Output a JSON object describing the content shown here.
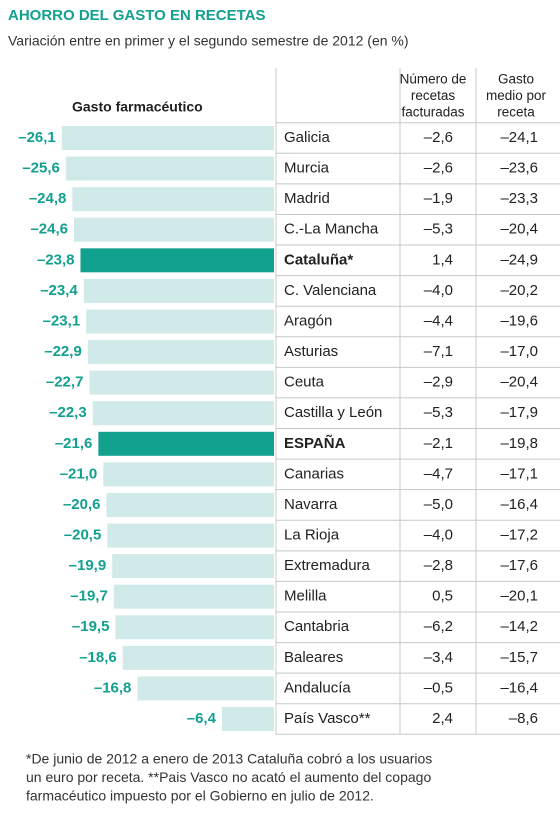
{
  "chart_data": {
    "type": "bar",
    "orientation": "horizontal",
    "title": "AHORRO DEL GASTO EN RECETAS",
    "subtitle": "Variación entre en primer y el segundo semestre de 2012 (en %)",
    "axis_label": "Gasto farmacéutico",
    "categories": [
      "Galicia",
      "Murcia",
      "Madrid",
      "C.-La Mancha",
      "Cataluña*",
      "C. Valenciana",
      "Aragón",
      "Asturias",
      "Ceuta",
      "Castilla y León",
      "ESPAÑA",
      "Canarias",
      "Navarra",
      "La Rioja",
      "Extremadura",
      "Melilla",
      "Cantabria",
      "Baleares",
      "Andalucía",
      "País Vasco**"
    ],
    "values": [
      -26.1,
      -25.6,
      -24.8,
      -24.6,
      -23.8,
      -23.4,
      -23.1,
      -22.9,
      -22.7,
      -22.3,
      -21.6,
      -21.0,
      -20.6,
      -20.5,
      -19.9,
      -19.7,
      -19.5,
      -18.6,
      -16.8,
      -6.4
    ],
    "value_labels": [
      "–26,1",
      "–25,6",
      "–24,8",
      "–24,6",
      "–23,8",
      "–23,4",
      "–23,1",
      "–22,9",
      "–22,7",
      "–22,3",
      "–21,6",
      "–21,0",
      "–20,6",
      "–20,5",
      "–19,9",
      "–19,7",
      "–19,5",
      "–18,6",
      "–16,8",
      "–6,4"
    ],
    "color": "#cfeae9",
    "colors": [
      "#cfeae9",
      "#cfeae9",
      "#cfeae9",
      "#cfeae9",
      "#12a08f",
      "#cfeae9",
      "#cfeae9",
      "#cfeae9",
      "#cfeae9",
      "#cfeae9",
      "#12a08f",
      "#cfeae9",
      "#cfeae9",
      "#cfeae9",
      "#cfeae9",
      "#cfeae9",
      "#cfeae9",
      "#cfeae9",
      "#cfeae9",
      "#cfeae9"
    ],
    "xlim": [
      -33.7,
      0
    ]
  },
  "table": {
    "columns": [
      [
        "Número de",
        "recetas",
        "facturadas"
      ],
      [
        "Gasto",
        "medio por",
        "receta"
      ]
    ],
    "rows": [
      [
        "–2,6",
        "–24,1"
      ],
      [
        "–2,6",
        "–23,6"
      ],
      [
        "–1,9",
        "–23,3"
      ],
      [
        "–5,3",
        "–20,4"
      ],
      [
        "1,4",
        "–24,9"
      ],
      [
        "–4,0",
        "–20,2"
      ],
      [
        "–4,4",
        "–19,6"
      ],
      [
        "–7,1",
        "–17,0"
      ],
      [
        "–2,9",
        "–20,4"
      ],
      [
        "–5,3",
        "–17,9"
      ],
      [
        "–2,1",
        "–19,8"
      ],
      [
        "–4,7",
        "–17,1"
      ],
      [
        "–5,0",
        "–16,4"
      ],
      [
        "–4,0",
        "–17,2"
      ],
      [
        "–2,8",
        "–17,6"
      ],
      [
        "0,5",
        "–20,1"
      ],
      [
        "–6,2",
        "–14,2"
      ],
      [
        "–3,4",
        "–15,7"
      ],
      [
        "–0,5",
        "–16,4"
      ],
      [
        "2,4",
        "–8,6"
      ]
    ]
  },
  "footnote": [
    "*De junio de 2012 a enero de 2013 Cataluña cobró a los usuarios",
    "un euro por receta. **Pais Vasco no acató el aumento del copago",
    "farmacéutico impuesto por el Gobierno en julio de 2012."
  ]
}
